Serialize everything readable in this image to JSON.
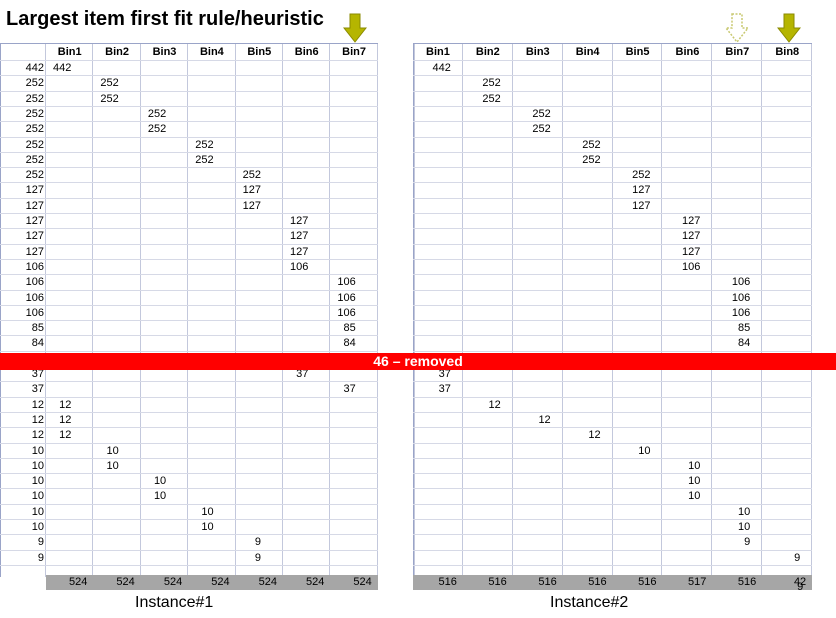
{
  "title": "Largest item first fit rule/heuristic",
  "removed_label": "46 – removed",
  "colors": {
    "removed_bar": "#ff0000",
    "arrow_fill": "#b5b500",
    "arrow_outline": "#c8c870",
    "total_bar": "#a6a6a6"
  },
  "instance1": {
    "caption": "Instance#1",
    "bins": [
      "Bin1",
      "Bin2",
      "Bin3",
      "Bin4",
      "Bin5",
      "Bin6",
      "Bin7"
    ],
    "totals": [
      "524",
      "524",
      "524",
      "524",
      "524",
      "524",
      "524"
    ],
    "rows": [
      {
        "item": "442",
        "bin": 0
      },
      {
        "item": "252",
        "bin": 1
      },
      {
        "item": "252",
        "bin": 1
      },
      {
        "item": "252",
        "bin": 2
      },
      {
        "item": "252",
        "bin": 2
      },
      {
        "item": "252",
        "bin": 3
      },
      {
        "item": "252",
        "bin": 3
      },
      {
        "item": "252",
        "bin": 4
      },
      {
        "item": "127",
        "bin": 4
      },
      {
        "item": "127",
        "bin": 4
      },
      {
        "item": "127",
        "bin": 5
      },
      {
        "item": "127",
        "bin": 5
      },
      {
        "item": "127",
        "bin": 5
      },
      {
        "item": "106",
        "bin": 5
      },
      {
        "item": "106",
        "bin": 6
      },
      {
        "item": "106",
        "bin": 6
      },
      {
        "item": "106",
        "bin": 6
      },
      {
        "item": "85",
        "bin": 6
      },
      {
        "item": "84",
        "bin": 6
      },
      {
        "item": "",
        "bin": -1
      },
      {
        "item": "37",
        "bin": 5
      },
      {
        "item": "37",
        "bin": 6
      },
      {
        "item": "12",
        "bin": 0
      },
      {
        "item": "12",
        "bin": 0
      },
      {
        "item": "12",
        "bin": 0
      },
      {
        "item": "10",
        "bin": 1
      },
      {
        "item": "10",
        "bin": 1
      },
      {
        "item": "10",
        "bin": 2
      },
      {
        "item": "10",
        "bin": 2
      },
      {
        "item": "10",
        "bin": 3
      },
      {
        "item": "10",
        "bin": 3
      },
      {
        "item": "9",
        "bin": 4
      },
      {
        "item": "9",
        "bin": 4
      }
    ]
  },
  "instance2": {
    "caption": "Instance#2",
    "bins": [
      "Bin1",
      "Bin2",
      "Bin3",
      "Bin4",
      "Bin5",
      "Bin6",
      "Bin7",
      "Bin8"
    ],
    "totals": [
      "516",
      "516",
      "516",
      "516",
      "516",
      "517",
      "516",
      "42"
    ],
    "extra_total": "9",
    "rows": [
      {
        "val": "442",
        "bin": 0
      },
      {
        "val": "252",
        "bin": 1
      },
      {
        "val": "252",
        "bin": 1
      },
      {
        "val": "252",
        "bin": 2
      },
      {
        "val": "252",
        "bin": 2
      },
      {
        "val": "252",
        "bin": 3
      },
      {
        "val": "252",
        "bin": 3
      },
      {
        "val": "252",
        "bin": 4
      },
      {
        "val": "127",
        "bin": 4
      },
      {
        "val": "127",
        "bin": 4
      },
      {
        "val": "127",
        "bin": 5
      },
      {
        "val": "127",
        "bin": 5
      },
      {
        "val": "127",
        "bin": 5
      },
      {
        "val": "106",
        "bin": 5
      },
      {
        "val": "106",
        "bin": 6
      },
      {
        "val": "106",
        "bin": 6
      },
      {
        "val": "106",
        "bin": 6
      },
      {
        "val": "85",
        "bin": 6
      },
      {
        "val": "84",
        "bin": 6
      },
      {
        "val": "",
        "bin": -1
      },
      {
        "val": "37",
        "bin": 0
      },
      {
        "val": "37",
        "bin": 0
      },
      {
        "val": "12",
        "bin": 1
      },
      {
        "val": "12",
        "bin": 2
      },
      {
        "val": "12",
        "bin": 3
      },
      {
        "val": "10",
        "bin": 4
      },
      {
        "val": "10",
        "bin": 5
      },
      {
        "val": "10",
        "bin": 5
      },
      {
        "val": "10",
        "bin": 5
      },
      {
        "val": "10",
        "bin": 6
      },
      {
        "val": "10",
        "bin": 6
      },
      {
        "val": "9",
        "bin": 6
      },
      {
        "val": "9",
        "bin": 7
      }
    ]
  }
}
